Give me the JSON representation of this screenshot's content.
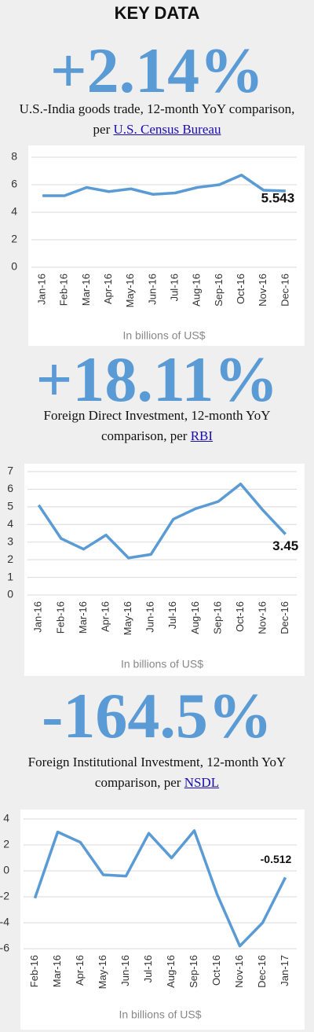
{
  "header": "KEY DATA",
  "chart_data": [
    {
      "type": "line",
      "title": "+2.14%",
      "subtitle": "U.S.-India goods trade, 12-month YoY comparison, per",
      "source": "U.S. Census Bureau",
      "xlabel": "In billions of US$",
      "categories": [
        "Jan-16",
        "Feb-16",
        "Mar-16",
        "Apr-16",
        "May-16",
        "Jun-16",
        "Jul-16",
        "Aug-16",
        "Sep-16",
        "Oct-16",
        "Nov-16",
        "Dec-16"
      ],
      "series": [
        {
          "name": "U.S.-India goods trade",
          "color": "#5b9bd5",
          "values": [
            5.2,
            5.2,
            5.8,
            5.5,
            5.7,
            5.3,
            5.4,
            5.8,
            6.0,
            6.7,
            5.6,
            5.543
          ]
        }
      ],
      "ylim": [
        0,
        8
      ],
      "yticks": [
        0,
        2,
        4,
        6,
        8
      ],
      "grid": true
    },
    {
      "type": "line",
      "title": "+18.11%",
      "subtitle": "Foreign Direct Investment, 12-month YoY comparison, per",
      "source": "RBI",
      "xlabel": "In billions of US$",
      "categories": [
        "Jan-16",
        "Feb-16",
        "Mar-16",
        "Apr-16",
        "May-16",
        "Jun-16",
        "Jul-16",
        "Aug-16",
        "Sep-16",
        "Oct-16",
        "Nov-16",
        "Dec-16"
      ],
      "series": [
        {
          "name": "Foreign Direct Investment",
          "color": "#5b9bd5",
          "values": [
            5.1,
            3.2,
            2.6,
            3.4,
            2.1,
            2.3,
            4.3,
            4.9,
            5.3,
            6.3,
            4.8,
            3.45
          ]
        }
      ],
      "ylim": [
        0,
        7
      ],
      "yticks": [
        0,
        1,
        2,
        3,
        4,
        5,
        6,
        7
      ],
      "grid": true
    },
    {
      "type": "line",
      "title": "-164.5%",
      "subtitle": "Foreign Institutional Investment, 12-month YoY comparison, per",
      "source": "NSDL",
      "xlabel": "In billions of US$",
      "categories": [
        "Feb-16",
        "Mar-16",
        "Apr-16",
        "May-16",
        "Jun-16",
        "Jul-16",
        "Aug-16",
        "Sep-16",
        "Oct-16",
        "Nov-16",
        "Dec-16",
        "Jan-17"
      ],
      "series": [
        {
          "name": "Foreign Institutional Investment",
          "color": "#5b9bd5",
          "values": [
            -2.1,
            3.0,
            2.2,
            -0.3,
            -0.4,
            2.9,
            1.0,
            3.1,
            -1.8,
            -5.8,
            -4.0,
            -0.512
          ]
        }
      ],
      "ylim": [
        -6,
        4
      ],
      "yticks": [
        -6,
        -4,
        -2,
        0,
        2,
        4
      ],
      "grid": true
    }
  ]
}
